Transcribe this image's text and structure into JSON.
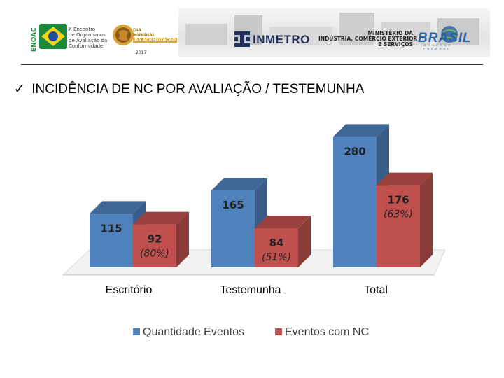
{
  "header": {
    "enoac": {
      "vertical_label": "ENOAC",
      "lines": [
        "X Encontro",
        "de Organismos",
        "de Avaliação da",
        "Conformidade"
      ]
    },
    "dia_mundial": {
      "lines": [
        "DIA",
        "MUNDIAL",
        "DA ACREDITAÇÃO"
      ],
      "year": "2017"
    },
    "inmetro": "INMETRO",
    "ministerio": [
      "MINISTÉRIO DA",
      "INDÚSTRIA, COMÉRCIO EXTERIOR",
      "E SERVIÇOS"
    ],
    "brasil": "BRASIL",
    "brasil_sub": "GOVERNO FEDERAL",
    "colors": {
      "enoac_green": "#1a8a3a",
      "flag_yellow": "#f3d21b",
      "flag_blue": "#1f4fa0",
      "inmetro_navy": "#1f2f5e",
      "brasil_blue": "#2a62a5"
    }
  },
  "title": {
    "check_icon": "✓",
    "text": "INCIDÊNCIA DE NC POR AVALIAÇÃO / TESTEMUNHA"
  },
  "chart_data": {
    "type": "bar",
    "categories": [
      "Escritório",
      "Testemunha",
      "Total"
    ],
    "series": [
      {
        "name": "Quantidade Eventos",
        "values": [
          115,
          165,
          280
        ],
        "labels": [
          "115",
          "165",
          "280"
        ],
        "color": "#4f81bd"
      },
      {
        "name": "Eventos com NC",
        "values": [
          92,
          84,
          176
        ],
        "labels": [
          "92",
          "84",
          "176"
        ],
        "pct_labels": [
          "(80%)",
          "(51%)",
          "(63%)"
        ],
        "color": "#c0504d"
      }
    ],
    "ylim": [
      0,
      300
    ],
    "grid": false,
    "legend_position": "bottom",
    "style": "3d-clustered"
  }
}
